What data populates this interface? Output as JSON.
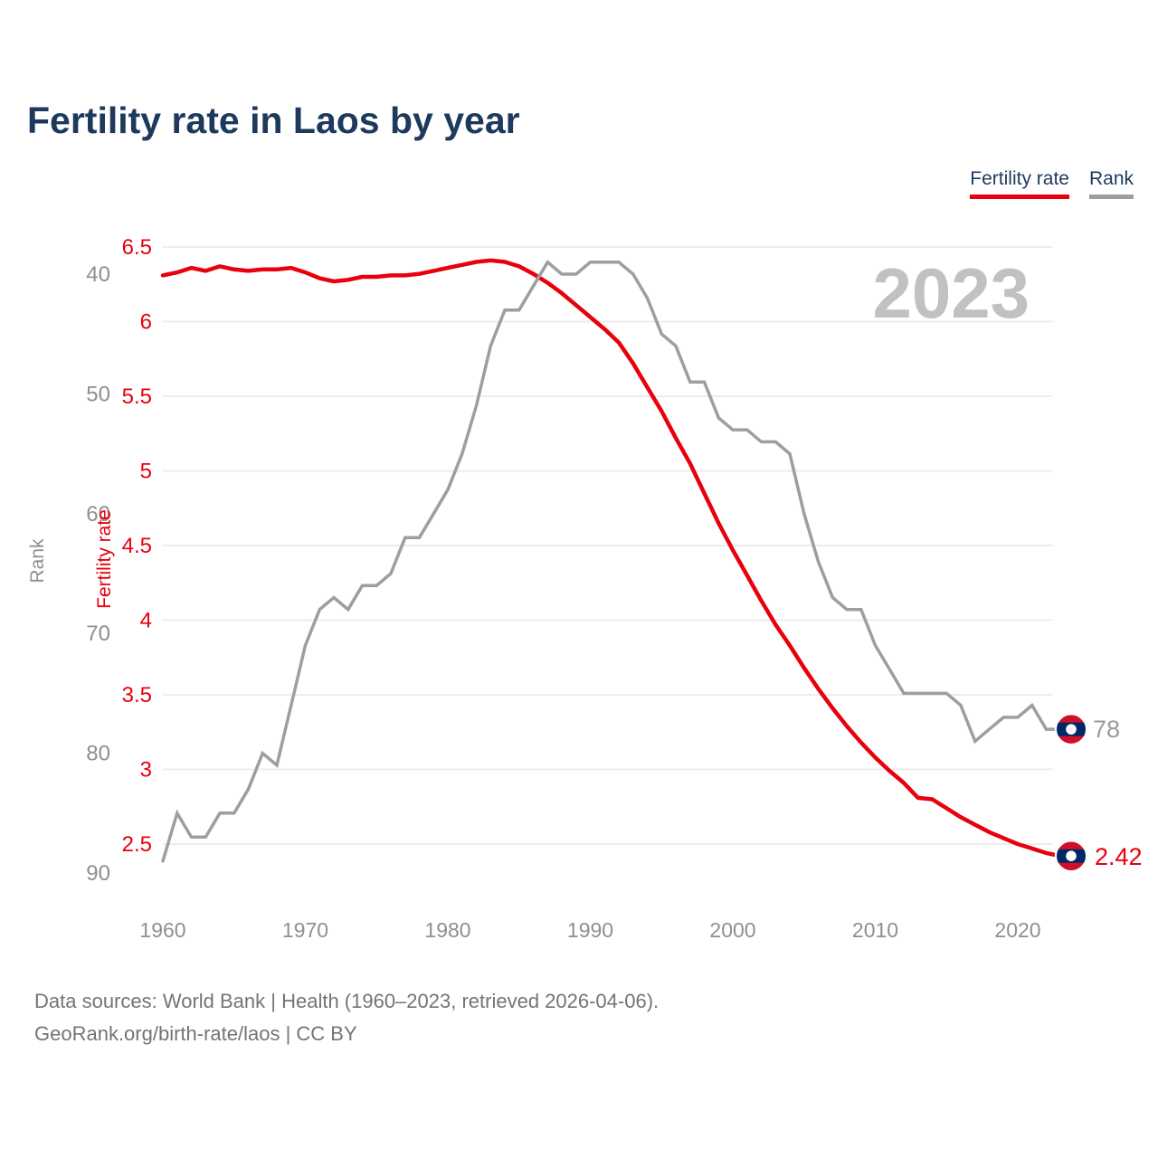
{
  "title": "Fertility rate in Laos by year",
  "legend": {
    "fertility_label": "Fertility rate",
    "rank_label": "Rank"
  },
  "watermark": "2023",
  "end_labels": {
    "rank": "78",
    "fertility": "2.42"
  },
  "footer": {
    "line1": "Data sources: World Bank | Health (1960–2023, retrieved 2026-04-06).",
    "line2": "GeoRank.org/birth-rate/laos | CC BY"
  },
  "colors": {
    "fertility": "#e8000d",
    "rank_line": "#9e9e9e",
    "title_navy": "#1d3a5c",
    "tick_gray": "#8f8f8f",
    "watermark_gray": "#c1c1c1",
    "grid": "#ededed",
    "footer_gray": "#747474",
    "flag_red": "#ce1126",
    "flag_blue": "#002868",
    "end_label_gray": "#9a9a9a"
  },
  "chart_data": {
    "type": "line",
    "title": "Fertility rate in Laos by year",
    "legend_position": "top-right",
    "grid": "horizontal at fertility ticks",
    "current_year_watermark": 2023,
    "x": [
      1960,
      1961,
      1962,
      1963,
      1964,
      1965,
      1966,
      1967,
      1968,
      1969,
      1970,
      1971,
      1972,
      1973,
      1974,
      1975,
      1976,
      1977,
      1978,
      1979,
      1980,
      1981,
      1982,
      1983,
      1984,
      1985,
      1986,
      1987,
      1988,
      1989,
      1990,
      1991,
      1992,
      1993,
      1994,
      1995,
      1996,
      1997,
      1998,
      1999,
      2000,
      2001,
      2002,
      2003,
      2004,
      2005,
      2006,
      2007,
      2008,
      2009,
      2010,
      2011,
      2012,
      2013,
      2014,
      2015,
      2016,
      2017,
      2018,
      2019,
      2020,
      2021,
      2022,
      2023
    ],
    "series": [
      {
        "name": "Fertility rate",
        "axis": "fertility",
        "color": "#e8000d",
        "end_label": "2.42",
        "values": [
          6.31,
          6.33,
          6.36,
          6.34,
          6.37,
          6.35,
          6.34,
          6.35,
          6.35,
          6.36,
          6.33,
          6.29,
          6.27,
          6.28,
          6.3,
          6.3,
          6.31,
          6.31,
          6.32,
          6.34,
          6.36,
          6.38,
          6.4,
          6.41,
          6.4,
          6.37,
          6.32,
          6.26,
          6.19,
          6.11,
          6.03,
          5.95,
          5.86,
          5.72,
          5.56,
          5.4,
          5.22,
          5.05,
          4.85,
          4.65,
          4.47,
          4.3,
          4.13,
          3.97,
          3.83,
          3.68,
          3.54,
          3.41,
          3.29,
          3.18,
          3.08,
          2.99,
          2.91,
          2.81,
          2.8,
          2.74,
          2.68,
          2.63,
          2.58,
          2.54,
          2.5,
          2.47,
          2.44,
          2.42
        ]
      },
      {
        "name": "Rank",
        "axis": "rank",
        "color": "#9e9e9e",
        "end_label": "78",
        "values": [
          89,
          85,
          87,
          87,
          85,
          85,
          83,
          80,
          81,
          76,
          71,
          68,
          67,
          68,
          66,
          66,
          65,
          62,
          62,
          60,
          58,
          55,
          51,
          46,
          43,
          43,
          41,
          39,
          40,
          40,
          39,
          39,
          39,
          40,
          42,
          45,
          46,
          49,
          49,
          52,
          53,
          53,
          54,
          54,
          55,
          60,
          64,
          67,
          68,
          68,
          71,
          73,
          75,
          75,
          75,
          75,
          76,
          79,
          78,
          77,
          77,
          76,
          78,
          78
        ]
      }
    ],
    "fertility_axis": {
      "label": "Fertility rate",
      "ticks": [
        6.5,
        6,
        5.5,
        5,
        4.5,
        4,
        3.5,
        3,
        2.5
      ]
    },
    "rank_axis": {
      "label": "Rank",
      "ticks": [
        40,
        50,
        60,
        70,
        80,
        90
      ],
      "inverted": true
    },
    "x_axis": {
      "ticks": [
        1960,
        1970,
        1980,
        1990,
        2000,
        2010,
        2020
      ]
    }
  }
}
